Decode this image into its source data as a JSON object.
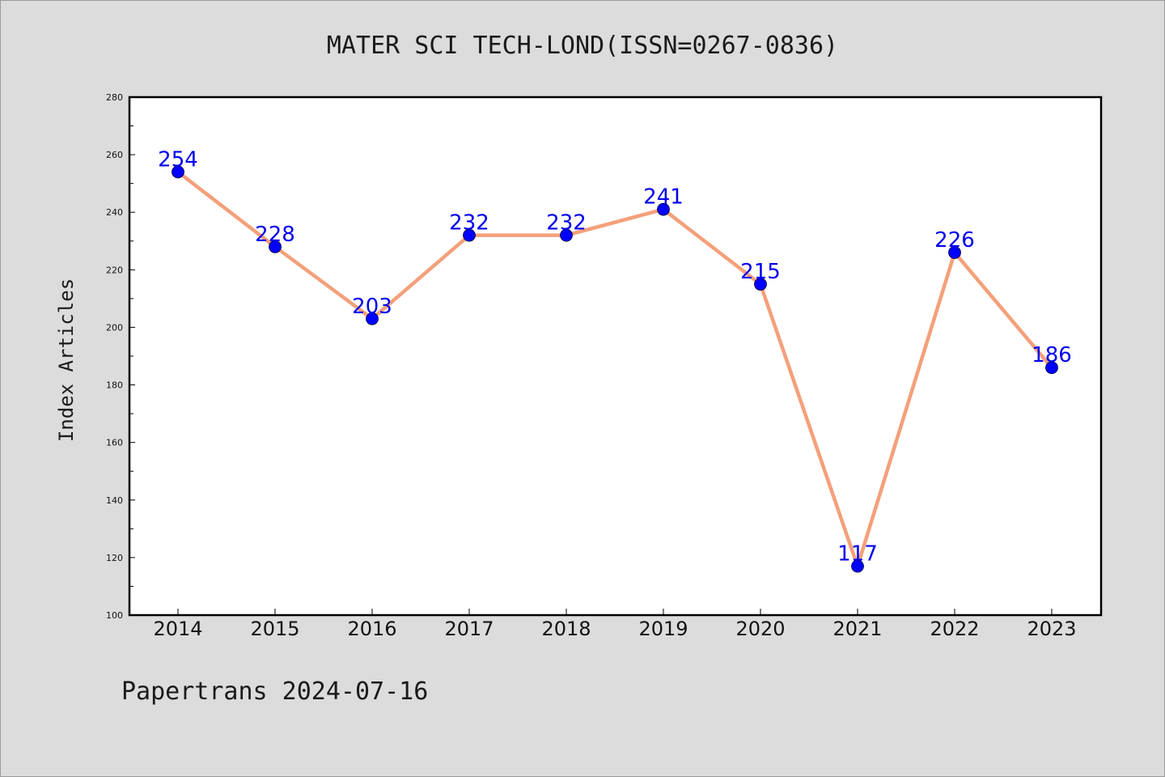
{
  "chart_data": {
    "type": "line",
    "title": "MATER SCI TECH-LOND(ISSN=0267-0836)",
    "xlabel": "",
    "ylabel": "Index Articles",
    "categories": [
      "2014",
      "2015",
      "2016",
      "2017",
      "2018",
      "2019",
      "2020",
      "2021",
      "2022",
      "2023"
    ],
    "series": [
      {
        "values": [
          254,
          228,
          203,
          232,
          232,
          241,
          215,
          117,
          226,
          186
        ]
      }
    ],
    "ylim": [
      100,
      280
    ],
    "yticks": [
      100,
      120,
      140,
      160,
      180,
      200,
      220,
      240,
      260,
      280
    ],
    "grid": false,
    "line_color": "#f4a07a",
    "marker_color": "#0000ff",
    "label_color": "#0000ee"
  },
  "footer": {
    "text": "Papertrans 2024-07-16"
  }
}
